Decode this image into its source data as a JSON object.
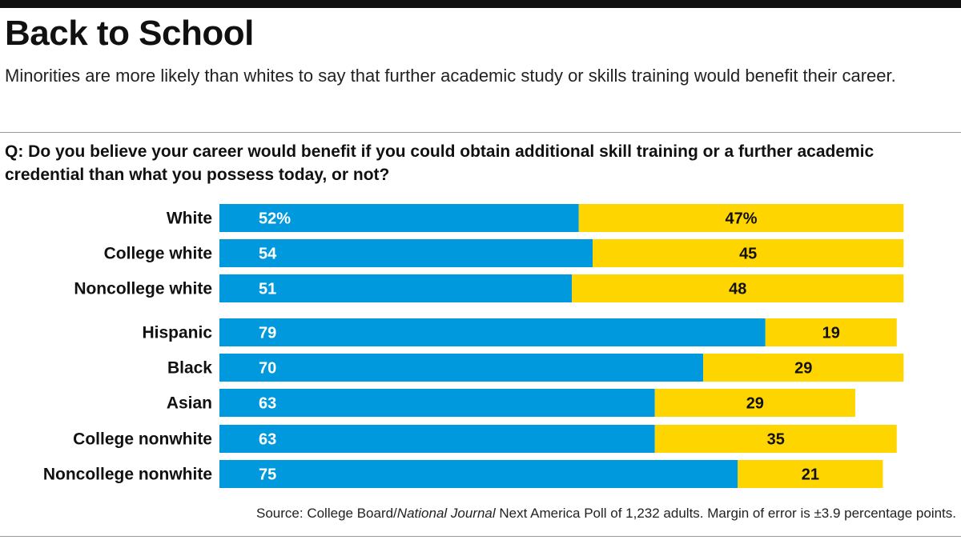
{
  "title": "Back to School",
  "subtitle": "Minorities are more likely than whites to say that further academic study or skills training would benefit their career.",
  "question": "Q: Do you believe your career would benefit if you could obtain additional skill training or a further academic credential than what you possess today, or not?",
  "source": {
    "prefix": "Source: College Board/",
    "publication": "National Journal",
    "suffix": " Next America Poll of 1,232 adults. Margin of error is ±3.9 percentage points."
  },
  "colors": {
    "yes": "#0099dd",
    "no": "#ffd500",
    "label_text": "#ffffff",
    "no_text": "#111111"
  },
  "chart_data": {
    "type": "bar",
    "orientation": "horizontal",
    "stacked": true,
    "categories": [
      "White",
      "College white",
      "Noncollege white",
      "Hispanic",
      "Black",
      "Asian",
      "College nonwhite",
      "Noncollege nonwhite"
    ],
    "value_labels": {
      "series_1": [
        "52%",
        "54",
        "51",
        "79",
        "70",
        "63",
        "63",
        "75"
      ],
      "series_2": [
        "47%",
        "45",
        "48",
        "19",
        "29",
        "29",
        "35",
        "21"
      ]
    },
    "series": [
      {
        "values": [
          52,
          54,
          51,
          79,
          70,
          63,
          63,
          75
        ]
      },
      {
        "values": [
          47,
          45,
          48,
          19,
          29,
          29,
          35,
          21
        ]
      }
    ],
    "xlim": [
      0,
      100
    ],
    "grid": false
  }
}
